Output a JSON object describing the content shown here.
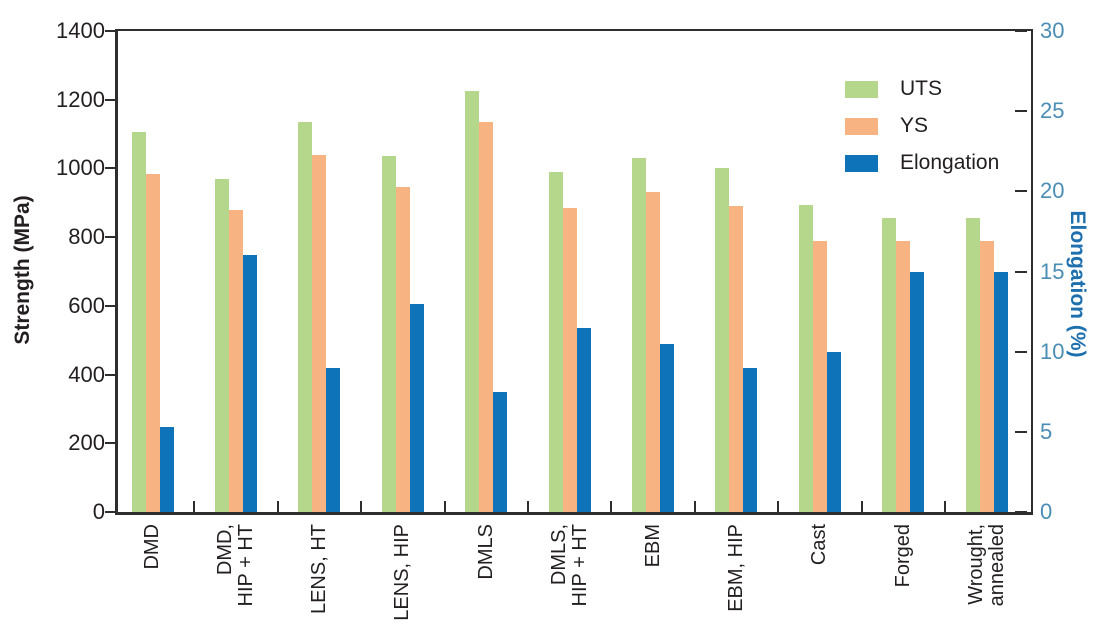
{
  "chart_data": {
    "type": "bar",
    "title": "",
    "categories": [
      "DMD",
      "DMD,\nHIP + HT",
      "LENS, HT",
      "LENS, HIP",
      "DMLS",
      "DMLS,\nHIP + HT",
      "EBM",
      "EBM, HIP",
      "Cast",
      "Forged",
      "Wrought,\nannealed"
    ],
    "series": [
      {
        "name": "UTS",
        "axis": "left",
        "color": "#b5d78b",
        "values": [
          1105,
          970,
          1135,
          1035,
          1225,
          990,
          1030,
          1000,
          895,
          855,
          855
        ]
      },
      {
        "name": "YS",
        "axis": "left",
        "color": "#f7b381",
        "values": [
          985,
          880,
          1040,
          945,
          1135,
          885,
          930,
          890,
          790,
          790,
          790
        ]
      },
      {
        "name": "Elongation",
        "axis": "right",
        "color": "#0e73b9",
        "values": [
          5.3,
          16,
          9,
          13,
          7.5,
          11.5,
          10.5,
          9,
          10,
          15,
          15
        ]
      }
    ],
    "ylabel_left": "Strength (MPa)",
    "ylabel_right": "Elongation (%)",
    "ylim_left": [
      0,
      1400
    ],
    "ylim_right": [
      0,
      30
    ],
    "left_ticks": [
      0,
      200,
      400,
      600,
      800,
      1000,
      1200,
      1400
    ],
    "right_ticks": [
      0,
      5,
      10,
      15,
      20,
      25,
      30
    ],
    "grid": false,
    "legend_position": "top-right"
  },
  "colors": {
    "uts_green": "#b5d78b",
    "ys_orange": "#f7b381",
    "elongation_blue": "#0e73b9",
    "axis_text": "#231f20",
    "frame": "#2e2e2e",
    "right_axis_text": "#4a8db5",
    "right_axis_title": "#1d6fad",
    "background": "#ffffff"
  }
}
